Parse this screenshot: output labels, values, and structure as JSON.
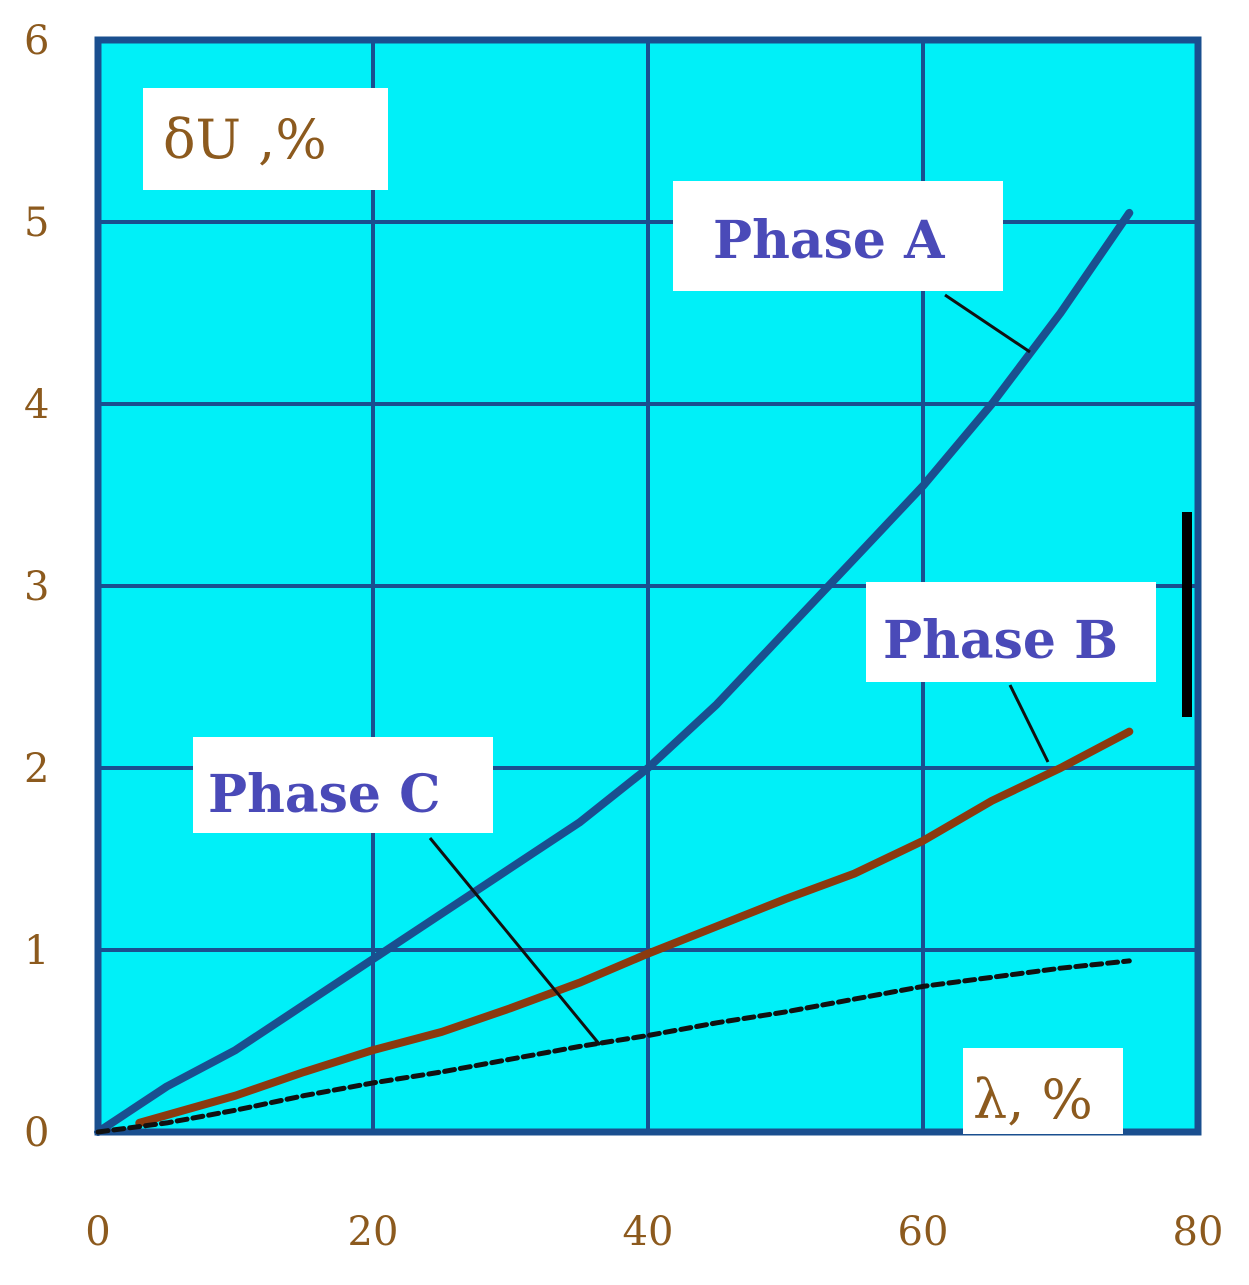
{
  "chart_data": {
    "type": "line",
    "ylabel": "δU ,%",
    "xlabel": "λ, %",
    "xlim": [
      0,
      80
    ],
    "ylim": [
      0,
      6
    ],
    "x_ticks": [
      "0",
      "20",
      "40",
      "60",
      "80"
    ],
    "y_ticks": [
      "0",
      "1",
      "2",
      "3",
      "4",
      "5",
      "6"
    ],
    "grid": true,
    "series": [
      {
        "name": "Phase A",
        "color": "#1a4f8f",
        "style": "solid",
        "x": [
          0,
          5,
          10,
          15,
          20,
          25,
          30,
          35,
          40,
          45,
          50,
          55,
          60,
          65,
          70,
          75
        ],
        "y": [
          0,
          0.25,
          0.45,
          0.7,
          0.95,
          1.2,
          1.45,
          1.7,
          2.0,
          2.35,
          2.75,
          3.15,
          3.55,
          4.0,
          4.5,
          5.05
        ]
      },
      {
        "name": "Phase B",
        "color": "#8b3a0f",
        "style": "solid",
        "x": [
          3,
          10,
          15,
          20,
          25,
          30,
          35,
          40,
          45,
          50,
          55,
          60,
          65,
          70,
          75
        ],
        "y": [
          0.05,
          0.2,
          0.33,
          0.45,
          0.55,
          0.68,
          0.82,
          0.98,
          1.13,
          1.28,
          1.42,
          1.6,
          1.82,
          2.0,
          2.2
        ]
      },
      {
        "name": "Phase C",
        "color": "#111111",
        "style": "dashed",
        "x": [
          0,
          5,
          10,
          15,
          20,
          25,
          30,
          35,
          40,
          45,
          50,
          55,
          60,
          65,
          70,
          75
        ],
        "y": [
          0,
          0.05,
          0.12,
          0.2,
          0.27,
          0.33,
          0.4,
          0.47,
          0.53,
          0.6,
          0.66,
          0.73,
          0.8,
          0.85,
          0.9,
          0.94
        ]
      }
    ],
    "annotations": [
      {
        "text": "Phase A",
        "series": "Phase A",
        "near_x": 68,
        "near_y": 4.3
      },
      {
        "text": "Phase B",
        "series": "Phase B",
        "near_x": 70,
        "near_y": 2.05
      },
      {
        "text": "Phase C",
        "series": "Phase C",
        "near_x": 37,
        "near_y": 0.5
      }
    ],
    "colors": {
      "plot_background": "#00f0f8",
      "grid": "#1a4f8f",
      "tick_text": "#8c5a1e",
      "label_text": "#4a4ab8"
    }
  }
}
